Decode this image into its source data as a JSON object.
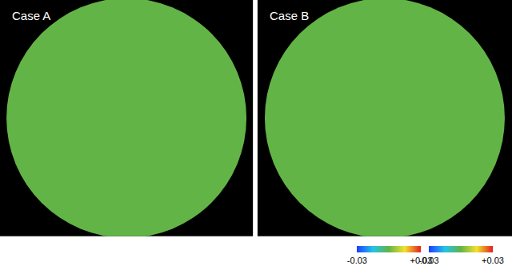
{
  "chart_data": {
    "type": "sphere_field",
    "panels": [
      {
        "title": "Case A",
        "surface_value": 0
      },
      {
        "title": "Case B",
        "surface_value": 0
      }
    ],
    "colorbar": {
      "range": [
        -0.03,
        0.03
      ],
      "ticks": [
        -0.03,
        {
          "value": 0.03,
          "label": "+0.03"
        }
      ]
    },
    "tick_labels": false,
    "grid": false
  }
}
